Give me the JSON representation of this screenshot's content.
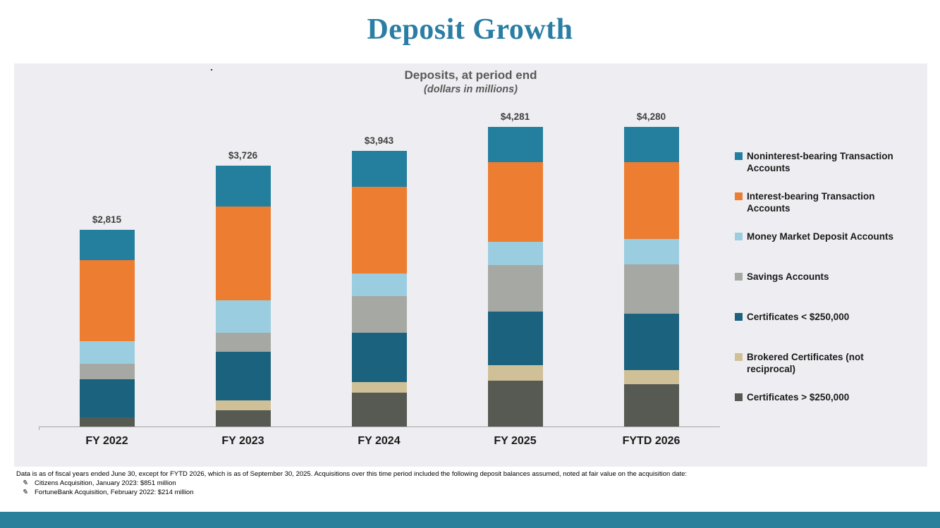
{
  "page": {
    "title": "Deposit Growth"
  },
  "chart_data": {
    "type": "bar",
    "stacked": true,
    "title": "Deposits, at period end",
    "subtitle": "(dollars in millions)",
    "unit": "USD millions",
    "legend_position": "right",
    "grid": false,
    "categories": [
      "FY 2022",
      "FY 2023",
      "FY 2024",
      "FY 2025",
      "FYTD 2026"
    ],
    "totals_display": [
      "$2,815",
      "$3,726",
      "$3,943",
      "$4,281",
      "$4,280"
    ],
    "totals": [
      2815,
      3726,
      3943,
      4281,
      4280
    ],
    "series": [
      {
        "name": "Noninterest-bearing Transaction Accounts",
        "legend_lines": [
          "Noninterest-bearing Transaction",
          "Accounts"
        ],
        "color": "#247F9E",
        "values": [
          437,
          586,
          520,
          505,
          499
        ]
      },
      {
        "name": "Interest-bearing Transaction Accounts",
        "legend_lines": [
          "Interest-bearing Transaction",
          "Accounts"
        ],
        "color": "#EC7D31",
        "values": [
          1160,
          1334,
          1234,
          1136,
          1105
        ]
      },
      {
        "name": "Money Market Deposit Accounts",
        "legend_lines": [
          "Money Market Deposit Accounts"
        ],
        "color": "#9BCDE0",
        "values": [
          320,
          465,
          322,
          330,
          357
        ]
      },
      {
        "name": "Savings Accounts",
        "legend_lines": [
          "Savings Accounts"
        ],
        "color": "#A6A9A3",
        "values": [
          225,
          276,
          526,
          666,
          708
        ]
      },
      {
        "name": "Certificates < $250,000",
        "legend_lines": [
          "Certificates < $250,000"
        ],
        "color": "#1A627E",
        "values": [
          538,
          690,
          711,
          769,
          808
        ]
      },
      {
        "name": "Brokered Certificates (not reciprocal)",
        "legend_lines": [
          "Brokered Certificates (not",
          "reciprocal)"
        ],
        "color": "#CFC098",
        "values": [
          0,
          145,
          151,
          221,
          195
        ]
      },
      {
        "name": "Certificates > $250,000",
        "legend_lines": [
          "Certificates > $250,000"
        ],
        "color": "#575A53",
        "values": [
          135,
          230,
          479,
          654,
          608
        ]
      }
    ]
  },
  "footnotes": {
    "intro": "Data is as of fiscal years ended June 30, except for FYTD 2026, which is as of September 30, 2025. Acquisitions over this time period included the following deposit balances assumed, noted at fair value on the acquisition date:",
    "bullet_icon": "✎",
    "bullets": [
      "Citizens Acquisition, January 2023: $851 million",
      "FortuneBank Acquisition, February 2022: $214 million"
    ]
  },
  "colors": {
    "slide_title": "#2B7EA3",
    "panel_background": "#EEEEF2",
    "footer_band": "#28809B",
    "chart_title_text": "#595959",
    "value_label_text": "#404040",
    "axis_label_text": "#1A1A1A",
    "axis_line": "#A6A6A6"
  }
}
